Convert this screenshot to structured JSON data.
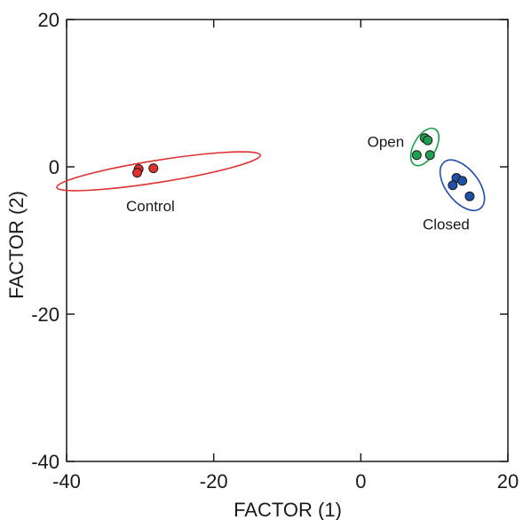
{
  "chart_data": {
    "type": "scatter",
    "title": "",
    "xlabel": "FACTOR (1)",
    "ylabel": "FACTOR (2)",
    "xlim": [
      -40,
      20
    ],
    "ylim": [
      -40,
      20
    ],
    "xticks": [
      -40,
      -20,
      0,
      20
    ],
    "yticks": [
      -40,
      -20,
      0,
      20
    ],
    "grid": false,
    "series": [
      {
        "name": "Control",
        "color": "#e03030",
        "points": [
          [
            -30.2,
            -0.3
          ],
          [
            -30.4,
            -0.8
          ],
          [
            -28.2,
            -0.2
          ]
        ],
        "ellipse": {
          "cx": -27.5,
          "cy": -0.6,
          "rx": 14.0,
          "ry": 1.5,
          "angle_deg": 9
        }
      },
      {
        "name": "Open",
        "color": "#20a050",
        "points": [
          [
            8.7,
            3.9
          ],
          [
            9.1,
            3.6
          ],
          [
            7.6,
            1.6
          ],
          [
            9.4,
            1.6
          ]
        ],
        "ellipse": {
          "cx": 8.7,
          "cy": 2.7,
          "rx": 2.8,
          "ry": 1.5,
          "angle_deg": 60
        }
      },
      {
        "name": "Closed",
        "color": "#1f4fa8",
        "points": [
          [
            13.0,
            -1.5
          ],
          [
            13.8,
            -1.9
          ],
          [
            12.5,
            -2.5
          ],
          [
            14.8,
            -4.0
          ]
        ],
        "ellipse": {
          "cx": 13.8,
          "cy": -2.5,
          "rx": 4.0,
          "ry": 2.2,
          "angle_deg": -52
        }
      }
    ]
  }
}
